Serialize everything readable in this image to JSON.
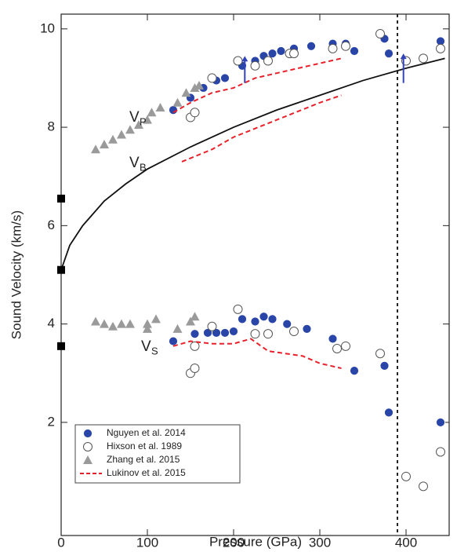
{
  "chart_data": {
    "type": "scatter",
    "xlabel": "Pressure (GPa)",
    "ylabel": "Sound Velocity (km/s)",
    "xlim": [
      0,
      450
    ],
    "ylim": [
      -0.3,
      10.3
    ],
    "xticks": [
      0,
      100,
      200,
      300,
      400
    ],
    "yticks": [
      2,
      4,
      6,
      8,
      10
    ],
    "grid": false,
    "legend": "lower left",
    "series": [
      {
        "type": "line",
        "style": "solid",
        "color": "#111111",
        "x": [
          0,
          10,
          25,
          50,
          75,
          100,
          150,
          200,
          250,
          300,
          350,
          400,
          445
        ],
        "values": [
          5.1,
          5.6,
          6.0,
          6.5,
          6.85,
          7.15,
          7.6,
          8.0,
          8.35,
          8.65,
          8.95,
          9.2,
          9.4
        ]
      },
      {
        "type": "scatter",
        "marker": "square",
        "color": "#000000",
        "x": [
          0,
          0,
          0
        ],
        "values": [
          6.55,
          5.1,
          3.55
        ]
      },
      {
        "name": "Nguyen et al. 2014",
        "type": "scatter",
        "marker": "circle-filled",
        "color": "#2a45a8",
        "x": [
          130,
          150,
          165,
          180,
          190,
          210,
          225,
          235,
          245,
          255,
          270,
          290,
          315,
          330,
          340,
          375,
          380,
          440,
          130,
          155,
          170,
          180,
          190,
          200,
          210,
          225,
          235,
          245,
          262,
          285,
          315,
          330,
          340,
          375,
          380,
          440
        ],
        "values": [
          8.35,
          8.6,
          8.8,
          8.95,
          9.0,
          9.25,
          9.35,
          9.45,
          9.5,
          9.55,
          9.6,
          9.65,
          9.7,
          9.7,
          9.55,
          9.8,
          9.5,
          9.75,
          3.65,
          3.8,
          3.82,
          3.82,
          3.82,
          3.85,
          4.1,
          4.05,
          4.15,
          4.1,
          4.0,
          3.9,
          3.7,
          3.55,
          3.05,
          3.15,
          2.2,
          2.0
        ]
      },
      {
        "name": "Hixson et al. 1989",
        "type": "scatter",
        "marker": "circle-open",
        "color": "#555555",
        "x": [
          150,
          155,
          175,
          205,
          225,
          240,
          265,
          270,
          315,
          330,
          370,
          400,
          420,
          440,
          150,
          155,
          155,
          175,
          205,
          225,
          240,
          270,
          320,
          330,
          370,
          400,
          420,
          440
        ],
        "values": [
          8.2,
          8.3,
          9.0,
          9.35,
          9.25,
          9.35,
          9.5,
          9.5,
          9.6,
          9.65,
          9.9,
          9.35,
          9.4,
          9.6,
          3.0,
          3.1,
          3.55,
          3.95,
          4.3,
          3.8,
          3.8,
          3.85,
          3.5,
          3.55,
          3.4,
          0.9,
          0.7,
          1.4
        ]
      },
      {
        "name": "Zhang et al. 2015",
        "type": "scatter",
        "marker": "triangle",
        "color": "#9a9a9a",
        "x": [
          40,
          50,
          60,
          70,
          80,
          90,
          100,
          105,
          115,
          135,
          145,
          155,
          160,
          40,
          50,
          60,
          70,
          80,
          100,
          100,
          110,
          135,
          150,
          155
        ],
        "values": [
          7.55,
          7.65,
          7.75,
          7.85,
          7.95,
          8.05,
          8.15,
          8.3,
          8.4,
          8.5,
          8.7,
          8.8,
          8.85,
          4.05,
          4.0,
          3.95,
          4.0,
          4.0,
          3.9,
          4.0,
          4.1,
          3.9,
          4.05,
          4.15
        ]
      },
      {
        "name": "Lukinov et al. 2015",
        "type": "line",
        "style": "dashed",
        "color": "#e8202a",
        "x": [
          130,
          150,
          175,
          200,
          225,
          250,
          275,
          300,
          325,
          null,
          140,
          175,
          200,
          250,
          300,
          325,
          null,
          130,
          150,
          175,
          200,
          220,
          240,
          260,
          280,
          300,
          325
        ],
        "values": [
          8.3,
          8.5,
          8.7,
          8.8,
          9.0,
          9.1,
          9.2,
          9.3,
          9.4,
          null,
          7.3,
          7.55,
          7.8,
          8.15,
          8.5,
          8.65,
          null,
          3.55,
          3.65,
          3.6,
          3.6,
          3.7,
          3.45,
          3.4,
          3.35,
          3.2,
          3.1
        ]
      }
    ],
    "vline": 390,
    "arrows": [
      {
        "x": 213,
        "y": [
          8.9,
          9.45
        ]
      },
      {
        "x": 397,
        "y": [
          8.9,
          9.5
        ]
      }
    ],
    "annotations": [
      {
        "text": "V",
        "sub": "P"
      },
      {
        "text": "V",
        "sub": "B"
      },
      {
        "text": "V",
        "sub": "S"
      }
    ]
  }
}
